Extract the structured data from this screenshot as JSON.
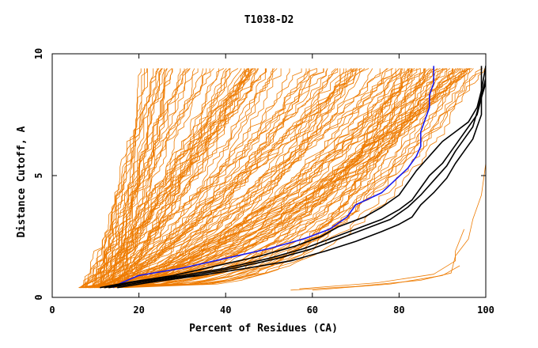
{
  "chart_data": {
    "type": "line",
    "title": "T1038-D2",
    "xlabel": "Percent of Residues (CA)",
    "ylabel": "Distance Cutoff, A",
    "xlim": [
      0,
      100
    ],
    "ylim": [
      0,
      10
    ],
    "x_ticks": [
      0,
      20,
      40,
      60,
      80,
      100
    ],
    "y_ticks": [
      0,
      5,
      10
    ],
    "grid": false,
    "legend": "none",
    "colors": {
      "background_models": "#ee7b00",
      "highlight_blue": "#1a1aee",
      "highlight_black": "#000000",
      "axes": "#000000"
    },
    "series": [
      {
        "color": "#1a1aee",
        "points": [
          [
            14,
            0.4
          ],
          [
            16,
            0.6
          ],
          [
            20,
            0.9
          ],
          [
            30,
            1.2
          ],
          [
            40,
            1.6
          ],
          [
            50,
            2.0
          ],
          [
            58,
            2.4
          ],
          [
            64,
            2.8
          ],
          [
            68,
            3.3
          ],
          [
            70,
            3.8
          ],
          [
            76,
            4.3
          ],
          [
            79,
            4.8
          ],
          [
            82,
            5.3
          ],
          [
            84,
            5.8
          ],
          [
            85,
            6.2
          ],
          [
            85,
            6.8
          ],
          [
            86,
            7.3
          ],
          [
            87,
            7.8
          ],
          [
            87,
            8.3
          ],
          [
            88,
            8.8
          ],
          [
            88,
            9.5
          ]
        ]
      },
      {
        "color": "#000000",
        "points": [
          [
            12,
            0.4
          ],
          [
            18,
            0.6
          ],
          [
            30,
            0.9
          ],
          [
            40,
            1.2
          ],
          [
            50,
            1.6
          ],
          [
            58,
            2.0
          ],
          [
            64,
            2.4
          ],
          [
            70,
            2.8
          ],
          [
            76,
            3.2
          ],
          [
            80,
            3.6
          ],
          [
            83,
            4.0
          ],
          [
            85,
            4.5
          ],
          [
            87,
            5.0
          ],
          [
            90,
            5.5
          ],
          [
            92,
            6.0
          ],
          [
            94,
            6.5
          ],
          [
            96,
            7.0
          ],
          [
            98,
            7.5
          ],
          [
            99,
            8.2
          ],
          [
            100,
            8.8
          ],
          [
            100,
            9.5
          ]
        ]
      },
      {
        "color": "#000000",
        "points": [
          [
            13,
            0.4
          ],
          [
            20,
            0.6
          ],
          [
            32,
            0.9
          ],
          [
            42,
            1.2
          ],
          [
            52,
            1.6
          ],
          [
            60,
            2.0
          ],
          [
            66,
            2.4
          ],
          [
            72,
            2.8
          ],
          [
            78,
            3.2
          ],
          [
            82,
            3.7
          ],
          [
            85,
            4.2
          ],
          [
            88,
            4.8
          ],
          [
            91,
            5.4
          ],
          [
            93,
            6.0
          ],
          [
            95,
            6.5
          ],
          [
            97,
            7.0
          ],
          [
            98,
            7.6
          ],
          [
            99,
            8.3
          ],
          [
            100,
            9.0
          ],
          [
            100,
            9.5
          ]
        ]
      },
      {
        "color": "#000000",
        "points": [
          [
            15,
            0.4
          ],
          [
            22,
            0.6
          ],
          [
            34,
            0.9
          ],
          [
            45,
            1.2
          ],
          [
            55,
            1.5
          ],
          [
            63,
            1.9
          ],
          [
            70,
            2.3
          ],
          [
            76,
            2.7
          ],
          [
            80,
            3.0
          ],
          [
            83,
            3.3
          ],
          [
            85,
            3.8
          ],
          [
            88,
            4.3
          ],
          [
            91,
            4.9
          ],
          [
            93,
            5.5
          ],
          [
            95,
            6.0
          ],
          [
            97,
            6.5
          ],
          [
            98,
            7.0
          ],
          [
            99,
            7.5
          ],
          [
            99,
            8.5
          ],
          [
            100,
            9.5
          ]
        ]
      },
      {
        "color": "#000000",
        "points": [
          [
            11,
            0.4
          ],
          [
            17,
            0.6
          ],
          [
            28,
            0.9
          ],
          [
            38,
            1.3
          ],
          [
            48,
            1.7
          ],
          [
            56,
            2.1
          ],
          [
            62,
            2.5
          ],
          [
            66,
            2.9
          ],
          [
            72,
            3.3
          ],
          [
            76,
            3.7
          ],
          [
            80,
            4.2
          ],
          [
            82,
            4.7
          ],
          [
            84,
            5.2
          ],
          [
            86,
            5.6
          ],
          [
            88,
            6.0
          ],
          [
            90,
            6.4
          ],
          [
            93,
            6.8
          ],
          [
            96,
            7.2
          ],
          [
            98,
            7.8
          ],
          [
            99,
            8.5
          ],
          [
            99,
            9.5
          ]
        ]
      }
    ]
  }
}
